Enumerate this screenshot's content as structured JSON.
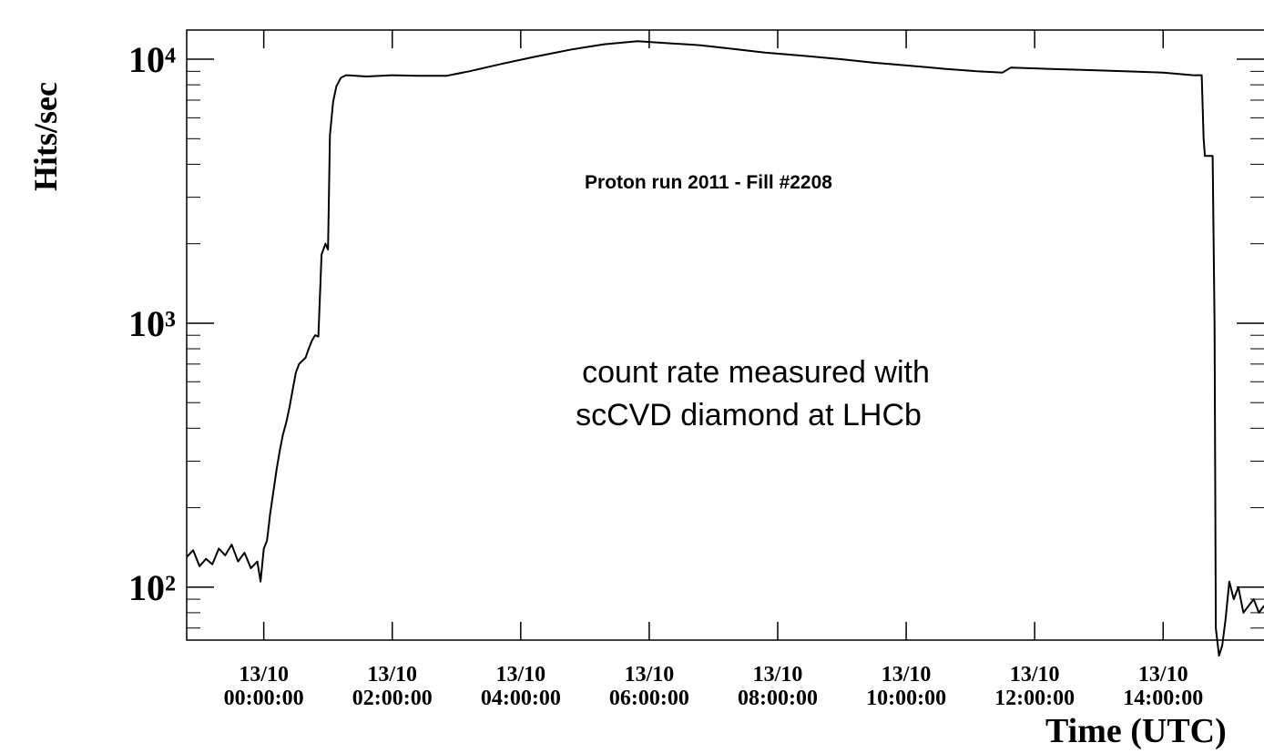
{
  "chart_data": {
    "type": "line",
    "ylabel": "Hits/sec",
    "xlabel": "Time (UTC)",
    "annotations": [
      "Proton run 2011 -  Fill #2208",
      "count rate measured with",
      "scCVD diamond at LHCb"
    ],
    "log_y": true,
    "x": [
      -1.2,
      -1.1,
      -1.0,
      -0.9,
      -0.8,
      -0.7,
      -0.6,
      -0.5,
      -0.4,
      -0.3,
      -0.2,
      -0.1,
      -0.05,
      0.0,
      0.05,
      0.1,
      0.15,
      0.2,
      0.25,
      0.3,
      0.35,
      0.4,
      0.45,
      0.5,
      0.55,
      0.6,
      0.65,
      0.7,
      0.75,
      0.8,
      0.85,
      0.9,
      0.96,
      1.0,
      1.03,
      1.08,
      1.13,
      1.2,
      1.28,
      1.6,
      2.0,
      2.4,
      2.84,
      3.2,
      3.7,
      4.2,
      4.8,
      5.3,
      5.82,
      6.3,
      6.8,
      7.23,
      7.8,
      8.4,
      9.0,
      9.5,
      10.07,
      10.6,
      11.1,
      11.5,
      11.63,
      12.2,
      12.8,
      13.4,
      14.0,
      14.47,
      14.6,
      14.63,
      14.65,
      14.77,
      14.8,
      14.82,
      14.87,
      14.92,
      14.97,
      15.03,
      15.1,
      15.17,
      15.25,
      15.33,
      15.41,
      15.49,
      15.57
    ],
    "series": [
      {
        "name": "count rate",
        "color": "#000000",
        "values": [
          130,
          138,
          120,
          128,
          122,
          140,
          132,
          145,
          125,
          135,
          118,
          125,
          105,
          140,
          150,
          190,
          230,
          280,
          330,
          380,
          420,
          480,
          560,
          650,
          700,
          720,
          740,
          800,
          860,
          900,
          890,
          1820,
          2000,
          1900,
          5150,
          6900,
          7900,
          8500,
          8700,
          8600,
          8700,
          8650,
          8650,
          9000,
          9600,
          10200,
          10900,
          11400,
          11700,
          11500,
          11300,
          11000,
          10600,
          10300,
          10000,
          9700,
          9450,
          9200,
          9000,
          8900,
          9300,
          9200,
          9100,
          9000,
          8900,
          8700,
          8700,
          5000,
          4300,
          4300,
          1000,
          70,
          55,
          60,
          75,
          105,
          90,
          100,
          80,
          85,
          90,
          80,
          85
        ]
      }
    ],
    "xlim": [
      -1.2,
      15.57
    ],
    "ylim": [
      63,
      12900
    ],
    "xticks": [
      {
        "value": 0,
        "label": "13/10 00:00:00"
      },
      {
        "value": 2,
        "label": "13/10 02:00:00"
      },
      {
        "value": 4,
        "label": "13/10 04:00:00"
      },
      {
        "value": 6,
        "label": "13/10 06:00:00"
      },
      {
        "value": 8,
        "label": "13/10 08:00:00"
      },
      {
        "value": 10,
        "label": "13/10 10:00:00"
      },
      {
        "value": 12,
        "label": "13/10 12:00:00"
      },
      {
        "value": 14,
        "label": "13/10 14:00:00"
      }
    ],
    "yticks": [
      {
        "value": 100,
        "label": "10²"
      },
      {
        "value": 1000,
        "label": "10³"
      },
      {
        "value": 10000,
        "label": "10⁴"
      }
    ],
    "yticks_minor": [
      70,
      80,
      90,
      200,
      300,
      400,
      500,
      600,
      700,
      800,
      900,
      2000,
      3000,
      4000,
      5000,
      6000,
      7000,
      8000,
      9000
    ]
  }
}
